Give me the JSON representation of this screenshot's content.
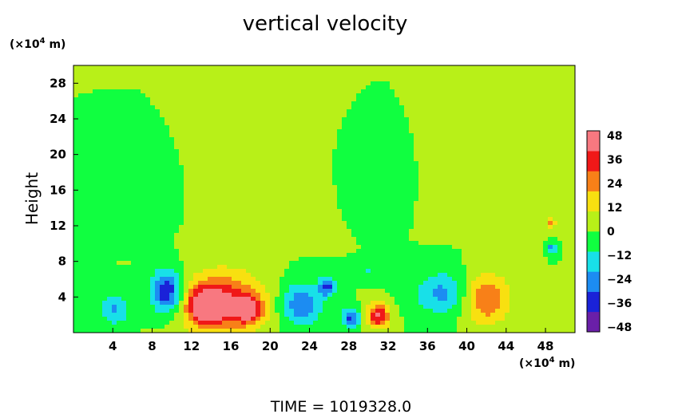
{
  "chart_data": {
    "type": "heatmap",
    "title": "vertical velocity",
    "ylabel": "Height",
    "x_unit_base": "(×10",
    "x_unit_exp": "4",
    "x_unit_tail": " m)",
    "y_unit_base": "(×10",
    "y_unit_exp": "4",
    "y_unit_tail": " m)",
    "footer": "TIME  =  1019328.0",
    "xlim": [
      0,
      51
    ],
    "ylim": [
      0,
      30
    ],
    "x_ticks": [
      "4",
      "8",
      "12",
      "16",
      "20",
      "24",
      "28",
      "32",
      "36",
      "40",
      "44",
      "48"
    ],
    "y_ticks": [
      "4",
      "8",
      "12",
      "16",
      "20",
      "24",
      "28"
    ],
    "colorbar": {
      "ticks": [
        "48",
        "36",
        "24",
        "12",
        "0",
        "−12",
        "−24",
        "−36",
        "−48"
      ],
      "range": [
        -48,
        48
      ],
      "colors": [
        "#6a1fa8",
        "#1a22d8",
        "#1c8cf2",
        "#18e0e8",
        "#10ff40",
        "#b8f018",
        "#f8e010",
        "#f88018",
        "#f01818",
        "#f87880"
      ]
    },
    "background_value": 0,
    "features": [
      {
        "x": 9.5,
        "y": 4.6,
        "rx": 1.8,
        "ry": 2.6,
        "value": -40
      },
      {
        "x": 4.2,
        "y": 2.6,
        "rx": 1.6,
        "ry": 2.0,
        "value": -20
      },
      {
        "x": 15.2,
        "y": 3.4,
        "rx": 4.5,
        "ry": 3.8,
        "value": 36
      },
      {
        "x": 13.5,
        "y": 3.0,
        "rx": 1.9,
        "ry": 2.0,
        "value": 40
      },
      {
        "x": 17.8,
        "y": 2.6,
        "rx": 1.6,
        "ry": 1.6,
        "value": 34
      },
      {
        "x": 23.2,
        "y": 3.2,
        "rx": 2.3,
        "ry": 2.6,
        "value": -28
      },
      {
        "x": 25.8,
        "y": 5.2,
        "rx": 0.9,
        "ry": 1.2,
        "value": -30
      },
      {
        "x": 28.2,
        "y": 1.6,
        "rx": 1.0,
        "ry": 1.2,
        "value": -32
      },
      {
        "x": 31.0,
        "y": 1.9,
        "rx": 1.3,
        "ry": 1.5,
        "value": 40
      },
      {
        "x": 37.5,
        "y": 4.4,
        "rx": 3.0,
        "ry": 2.6,
        "value": -22
      },
      {
        "x": 42.0,
        "y": 3.8,
        "rx": 2.5,
        "ry": 3.1,
        "value": 30
      },
      {
        "x": 48.7,
        "y": 9.5,
        "rx": 0.35,
        "ry": 0.6,
        "value": -36
      },
      {
        "x": 48.6,
        "y": 12.3,
        "rx": 0.5,
        "ry": 0.9,
        "value": 24
      },
      {
        "x": 30.0,
        "y": 7.0,
        "rx": 1.5,
        "ry": 1.0,
        "value": -10
      },
      {
        "x": 20.0,
        "y": 13.5,
        "rx": 5.0,
        "ry": 3.0,
        "value": 6
      },
      {
        "x": 6.0,
        "y": 14.0,
        "rx": 3.0,
        "ry": 2.5,
        "value": -6
      },
      {
        "x": 40.0,
        "y": 14.5,
        "rx": 4.0,
        "ry": 2.8,
        "value": 5
      },
      {
        "x": 31.0,
        "y": 15.0,
        "rx": 3.0,
        "ry": 2.5,
        "value": -5
      }
    ]
  }
}
